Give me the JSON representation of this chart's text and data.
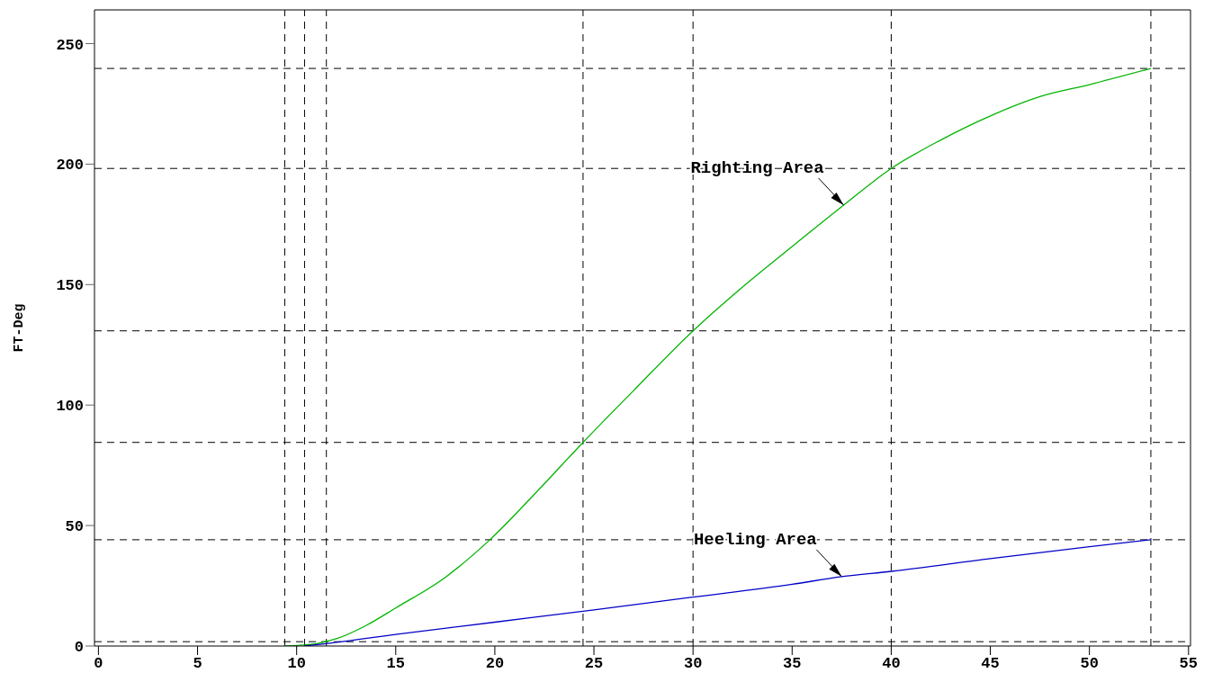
{
  "chart_data": {
    "type": "line",
    "ylabel": "FT-Deg",
    "xlim": [
      -0.2,
      55.1
    ],
    "xticks": [
      0,
      5,
      10,
      15,
      20,
      25,
      30,
      35,
      40,
      45,
      50,
      55
    ],
    "ylim": [
      0,
      264
    ],
    "yticks": [
      0,
      50,
      100,
      150,
      200,
      250
    ],
    "marker": "none",
    "line_style": "solid",
    "series": [
      {
        "color": "#00b400",
        "x": [
          9.4,
          11,
          12,
          13.5,
          15,
          17.5,
          19.75,
          22,
          24.45,
          27,
          30,
          32.5,
          35,
          37.6,
          40,
          42.5,
          45,
          47.5,
          50,
          53.1
        ],
        "values": [
          0,
          1,
          3,
          8.5,
          15.8,
          28.5,
          44.1,
          63,
          84.5,
          106,
          130.8,
          149,
          165.8,
          183,
          198.2,
          210,
          220,
          228,
          233,
          239.7
        ]
      },
      {
        "color": "#0000c8",
        "x": [
          10.4,
          11.5,
          15,
          20,
          25,
          30,
          35,
          37.5,
          40,
          45,
          50,
          53.1
        ],
        "values": [
          0,
          1,
          4.8,
          9.9,
          15,
          20.3,
          25.6,
          28.8,
          31,
          36.3,
          41.2,
          44.1
        ]
      }
    ],
    "ref_lines": [
      {
        "axis": "x",
        "value": 9.4,
        "line_style": "dashed"
      },
      {
        "axis": "x",
        "value": 10.4,
        "line_style": "dashed"
      },
      {
        "axis": "x",
        "value": 11.5,
        "line_style": "dashed"
      },
      {
        "axis": "x",
        "value": 24.45,
        "line_style": "dashed"
      },
      {
        "axis": "x",
        "value": 30,
        "line_style": "dashed"
      },
      {
        "axis": "x",
        "value": 40,
        "line_style": "dashed"
      },
      {
        "axis": "x",
        "value": 53.1,
        "line_style": "dashed"
      },
      {
        "axis": "y",
        "value": 239.7,
        "line_style": "dashed"
      },
      {
        "axis": "y",
        "value": 198.2,
        "line_style": "dashed"
      },
      {
        "axis": "y",
        "value": 130.8,
        "line_style": "dashed"
      },
      {
        "axis": "y",
        "value": 84.5,
        "line_style": "dashed"
      },
      {
        "axis": "y",
        "value": 44.1,
        "line_style": "dashed"
      },
      {
        "axis": "y",
        "value": 1.8,
        "line_style": "dashed"
      }
    ],
    "annotations": [
      {
        "text": "Righting Area",
        "x": 37.6,
        "y": 183
      },
      {
        "text": "Heeling Area",
        "x": 37.5,
        "y": 28.8
      }
    ]
  }
}
